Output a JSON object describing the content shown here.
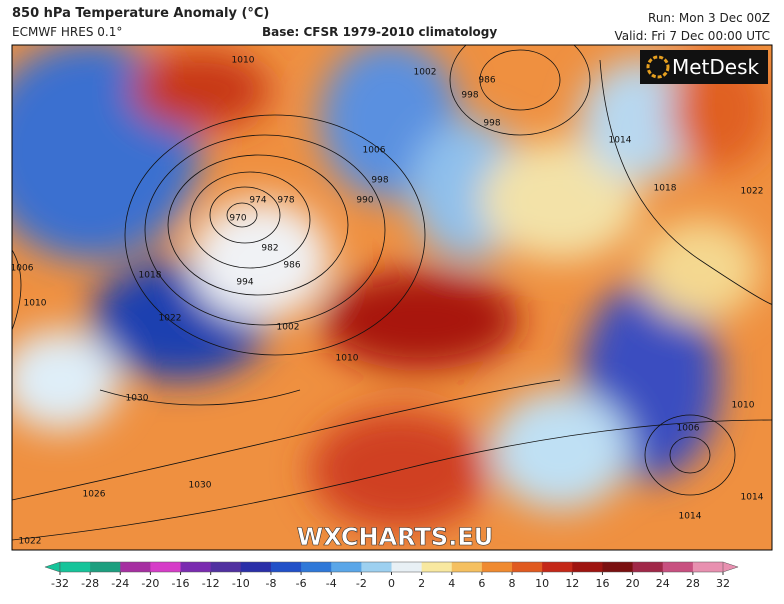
{
  "header": {
    "title": "850 hPa Temperature Anomaly (°C)",
    "model": "ECMWF HRES 0.1°",
    "base": "Base: CFSR 1979-2010 climatology",
    "run": "Run: Mon 3 Dec 00Z",
    "valid": "Valid: Fri 7 Dec 00:00 UTC"
  },
  "logo": "MetDesk",
  "watermark": "WXCHARTS.EU",
  "isobars": {
    "labels": [
      "1010",
      "1002",
      "986",
      "998",
      "998",
      "1014",
      "1006",
      "998",
      "990",
      "974",
      "978",
      "970",
      "982",
      "986",
      "994",
      "1018",
      "1022",
      "1002",
      "1010",
      "1030",
      "1030",
      "1026",
      "1022",
      "1018",
      "1022",
      "1010",
      "1006",
      "1014",
      "1014",
      "1006",
      "1010"
    ]
  },
  "colorbar": {
    "ticks": [
      -32,
      -28,
      -24,
      -20,
      -16,
      -12,
      -10,
      -8,
      -6,
      -4,
      -2,
      0,
      2,
      4,
      6,
      8,
      10,
      12,
      16,
      20,
      24,
      28,
      32
    ],
    "colors": [
      "#16c49a",
      "#1d9f7f",
      "#a62fa1",
      "#d63dc8",
      "#7a2bb0",
      "#5030a0",
      "#2a2fa8",
      "#2150c8",
      "#2f78d8",
      "#5aa6e8",
      "#9dd0f0",
      "#e8f0f5",
      "#f8e8a0",
      "#f5c060",
      "#ef8a30",
      "#e05a20",
      "#c42818",
      "#9e1410",
      "#7a1010",
      "#a02848",
      "#c85080",
      "#e890b0"
    ]
  }
}
